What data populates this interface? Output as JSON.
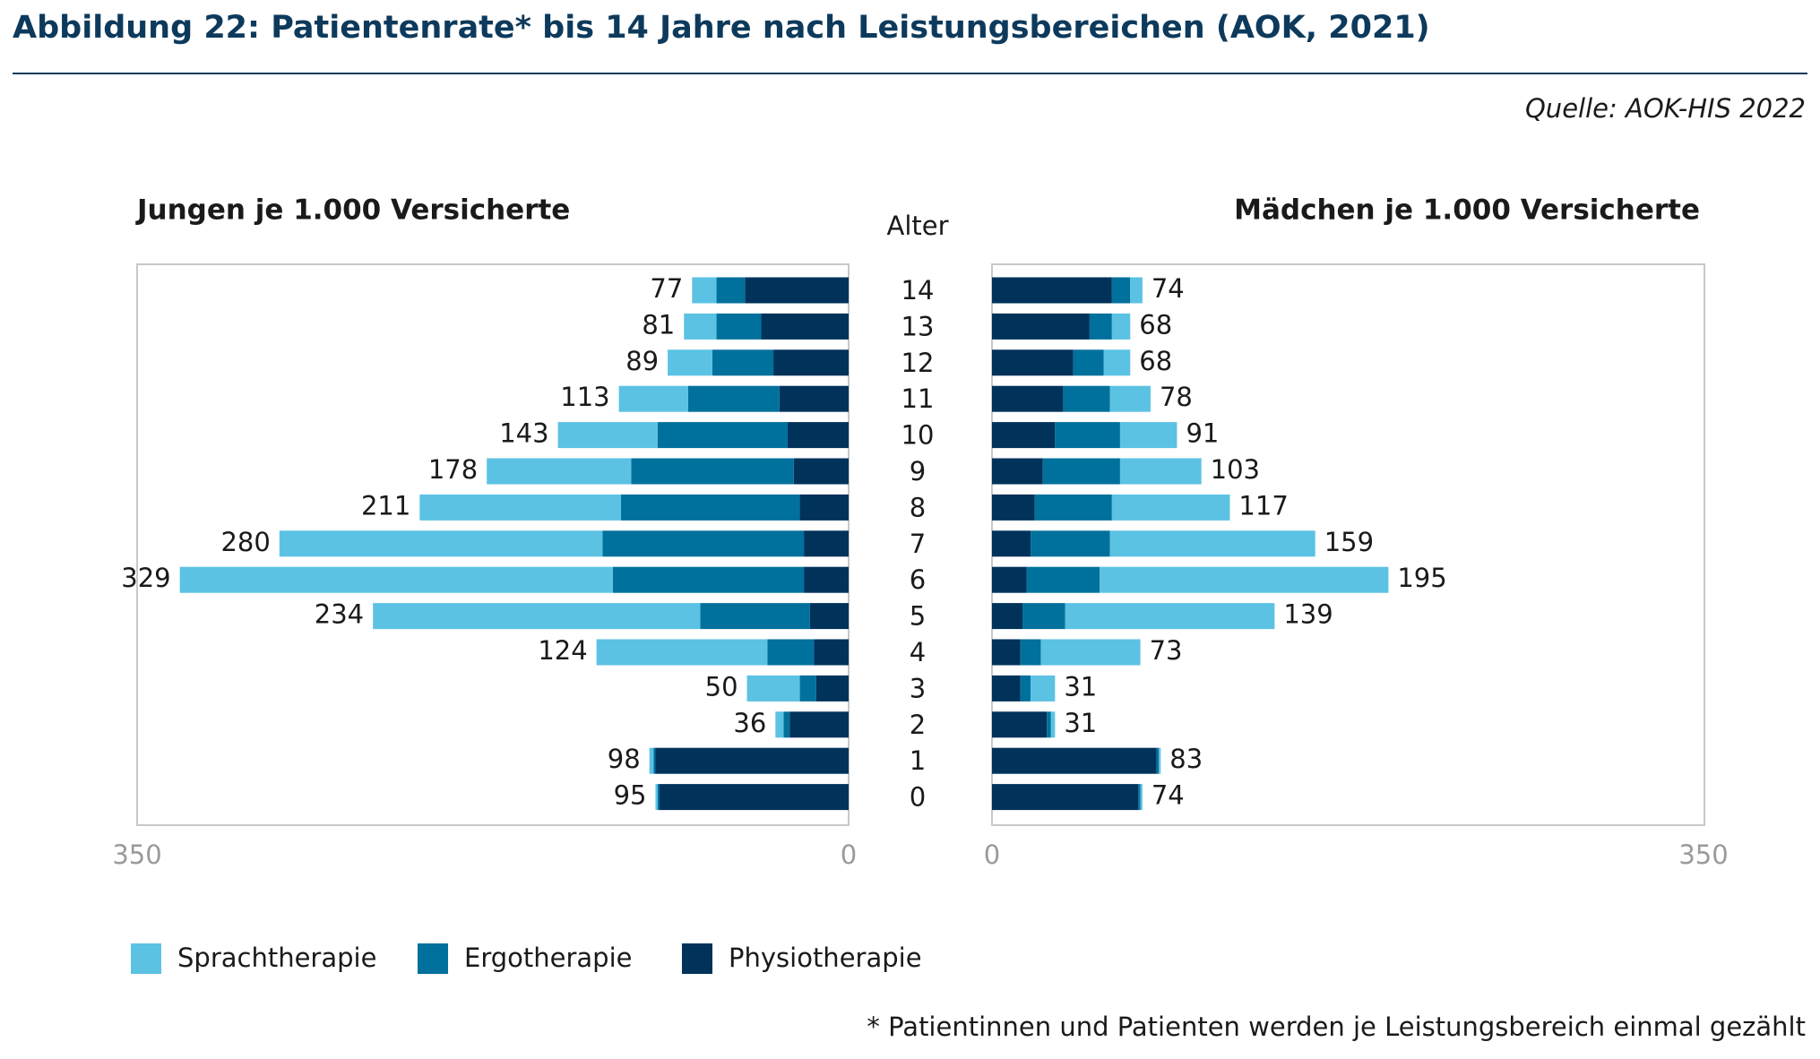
{
  "chart_data": {
    "type": "bar",
    "title": "Abbildung 22: Patientenrate* bis 14 Jahre nach Leistungsbereichen (AOK, 2021)",
    "source": "Quelle: AOK-HIS 2022",
    "footnote": "* Patientinnen und Patienten werden je Leistungsbereich einmal gezählt",
    "y_label": "Alter",
    "categories": [
      "14",
      "13",
      "12",
      "11",
      "10",
      "9",
      "8",
      "7",
      "6",
      "5",
      "4",
      "3",
      "2",
      "1",
      "0"
    ],
    "xlim": [
      0,
      350
    ],
    "xticks": [
      0,
      350
    ],
    "series": [
      {
        "name": "Sprachtherapie",
        "color": "#5bc2e4"
      },
      {
        "name": "Ergotherapie",
        "color": "#00709c"
      },
      {
        "name": "Physiotherapie",
        "color": "#00325a"
      }
    ],
    "panels": [
      {
        "title": "Jungen je 1.000 Versicherte",
        "values": [
          [
            12,
            16,
            22,
            34,
            49,
            71,
            99,
            159,
            213,
            161,
            84,
            26,
            4,
            2,
            1
          ],
          [
            14,
            22,
            30,
            45,
            64,
            80,
            88,
            99,
            94,
            54,
            23,
            8,
            3,
            1,
            1
          ],
          [
            51,
            43,
            37,
            34,
            30,
            27,
            24,
            22,
            22,
            19,
            17,
            16,
            29,
            95,
            93
          ]
        ],
        "totals": [
          77,
          81,
          89,
          113,
          143,
          178,
          211,
          280,
          329,
          234,
          124,
          50,
          36,
          98,
          95
        ]
      },
      {
        "title": "Mädchen je 1.000 Versicherte",
        "values": [
          [
            6,
            9,
            13,
            20,
            28,
            40,
            58,
            101,
            142,
            103,
            49,
            12,
            2,
            1,
            1
          ],
          [
            9,
            11,
            15,
            23,
            32,
            38,
            38,
            39,
            36,
            21,
            10,
            5,
            2,
            1,
            1
          ],
          [
            59,
            48,
            40,
            35,
            31,
            25,
            21,
            19,
            17,
            15,
            14,
            14,
            27,
            81,
            72
          ]
        ],
        "totals": [
          74,
          68,
          68,
          78,
          91,
          103,
          117,
          159,
          195,
          139,
          73,
          31,
          31,
          83,
          74
        ]
      }
    ]
  }
}
